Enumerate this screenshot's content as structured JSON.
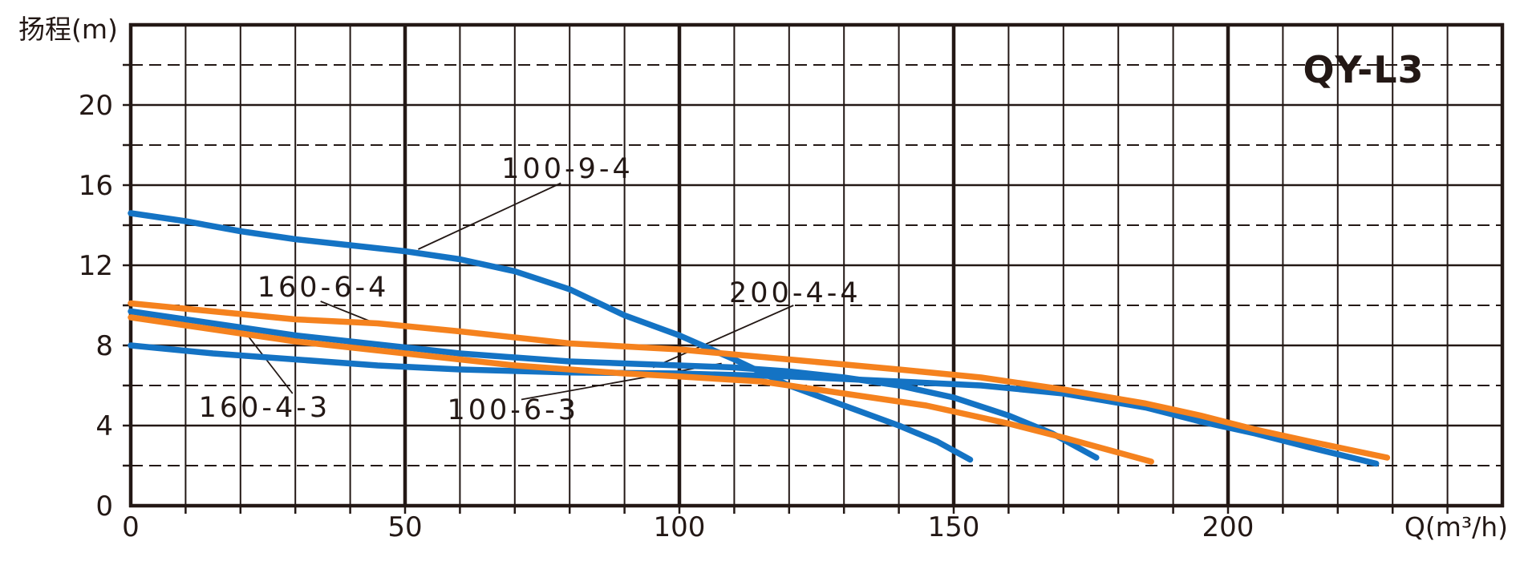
{
  "title": "QY-L3",
  "colors": {
    "blue": "#1473C4",
    "orange": "#F5821E",
    "ink": "#231815",
    "background": "#FFFFFF"
  },
  "chart_data": {
    "type": "line",
    "title": "QY-L3",
    "xlabel": "Q(m³/h)",
    "ylabel": "扬程(m)",
    "xlim": [
      0,
      250
    ],
    "ylim": [
      0,
      24
    ],
    "x_ticks": [
      0,
      50,
      100,
      150,
      200
    ],
    "y_ticks": [
      0,
      4,
      8,
      12,
      16,
      20
    ],
    "x_minor_step": 10,
    "y_minor_step": 2,
    "grid": true,
    "legend_position": "none",
    "series": [
      {
        "name": "100-9-4",
        "color": "blue",
        "points": [
          [
            0,
            14.6
          ],
          [
            10,
            14.2
          ],
          [
            20,
            13.7
          ],
          [
            30,
            13.3
          ],
          [
            40,
            13.0
          ],
          [
            50,
            12.7
          ],
          [
            60,
            12.3
          ],
          [
            70,
            11.7
          ],
          [
            80,
            10.8
          ],
          [
            90,
            9.5
          ],
          [
            100,
            8.5
          ],
          [
            110,
            7.3
          ],
          [
            120,
            6.0
          ],
          [
            130,
            5.0
          ],
          [
            140,
            4.0
          ],
          [
            147,
            3.2
          ],
          [
            153,
            2.3
          ]
        ]
      },
      {
        "name": "100-6-3",
        "color": "blue",
        "points": [
          [
            0,
            9.7
          ],
          [
            10,
            9.3
          ],
          [
            20,
            8.9
          ],
          [
            30,
            8.5
          ],
          [
            40,
            8.2
          ],
          [
            50,
            7.9
          ],
          [
            60,
            7.6
          ],
          [
            70,
            7.4
          ],
          [
            80,
            7.2
          ],
          [
            90,
            7.1
          ],
          [
            100,
            7.0
          ],
          [
            110,
            6.9
          ],
          [
            120,
            6.7
          ],
          [
            130,
            6.4
          ],
          [
            140,
            6.0
          ],
          [
            150,
            5.4
          ],
          [
            160,
            4.5
          ],
          [
            168,
            3.6
          ],
          [
            176,
            2.4
          ]
        ]
      },
      {
        "name": "200-4-4",
        "color": "blue",
        "points": [
          [
            0,
            8.0
          ],
          [
            15,
            7.6
          ],
          [
            30,
            7.3
          ],
          [
            45,
            7.0
          ],
          [
            60,
            6.8
          ],
          [
            80,
            6.65
          ],
          [
            100,
            6.6
          ],
          [
            120,
            6.45
          ],
          [
            140,
            6.2
          ],
          [
            155,
            6.0
          ],
          [
            170,
            5.6
          ],
          [
            185,
            4.9
          ],
          [
            195,
            4.2
          ],
          [
            205,
            3.6
          ],
          [
            215,
            2.9
          ],
          [
            227,
            2.1
          ]
        ]
      },
      {
        "name": "160-6-4",
        "color": "orange",
        "points": [
          [
            0,
            10.1
          ],
          [
            15,
            9.7
          ],
          [
            30,
            9.3
          ],
          [
            45,
            9.1
          ],
          [
            60,
            8.7
          ],
          [
            80,
            8.1
          ],
          [
            100,
            7.8
          ],
          [
            120,
            7.3
          ],
          [
            140,
            6.8
          ],
          [
            155,
            6.4
          ],
          [
            170,
            5.8
          ],
          [
            185,
            5.1
          ],
          [
            195,
            4.5
          ],
          [
            205,
            3.8
          ],
          [
            215,
            3.2
          ],
          [
            222,
            2.8
          ],
          [
            229,
            2.4
          ]
        ]
      },
      {
        "name": "160-4-3",
        "color": "orange",
        "points": [
          [
            0,
            9.4
          ],
          [
            10,
            9.0
          ],
          [
            20,
            8.6
          ],
          [
            30,
            8.2
          ],
          [
            40,
            7.9
          ],
          [
            50,
            7.6
          ],
          [
            60,
            7.3
          ],
          [
            70,
            7.0
          ],
          [
            80,
            6.8
          ],
          [
            90,
            6.6
          ],
          [
            100,
            6.45
          ],
          [
            115,
            6.2
          ],
          [
            130,
            5.6
          ],
          [
            145,
            5.0
          ],
          [
            160,
            4.1
          ],
          [
            170,
            3.4
          ],
          [
            178,
            2.8
          ],
          [
            186,
            2.2
          ]
        ]
      }
    ],
    "annotations": [
      {
        "label": "100-9-4",
        "x": 79.6,
        "y": 16.84,
        "leader": [
          [
            78.4,
            16.1
          ],
          [
            52.4,
            12.8
          ]
        ]
      },
      {
        "label": "160-6-4",
        "x": 35.1,
        "y": 10.92,
        "leader": [
          [
            34.6,
            10.2
          ],
          [
            44.6,
            9.1
          ]
        ]
      },
      {
        "label": "200-4-4",
        "x": 121.1,
        "y": 10.64,
        "leader": [
          [
            120.8,
            10.0
          ],
          [
            95.2,
            6.9
          ]
        ]
      },
      {
        "label": "160-4-3",
        "x": 24.4,
        "y": 4.92,
        "leader": [
          [
            29.5,
            5.6
          ],
          [
            21.3,
            8.5
          ]
        ]
      },
      {
        "label": "100-6-3",
        "x": 69.7,
        "y": 4.8,
        "leader": [
          [
            71.2,
            5.3
          ],
          [
            107.7,
            7.1
          ]
        ]
      }
    ]
  }
}
